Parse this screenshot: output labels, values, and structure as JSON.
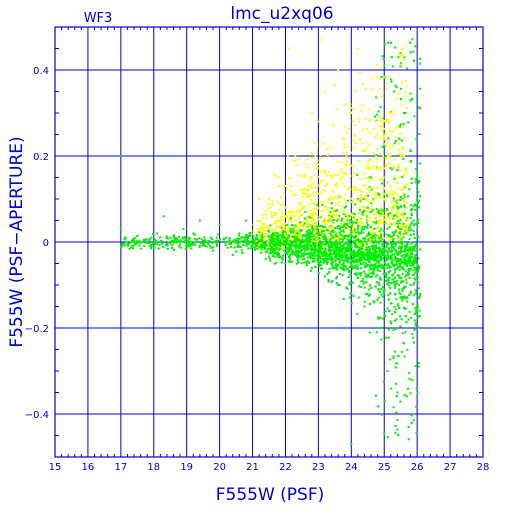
{
  "chart_data": {
    "type": "scatter",
    "title": "lmc_u2xq06",
    "subtitle": "WF3",
    "xlabel": "F555W (PSF)",
    "ylabel": "F555W (PSF−APERTURE)",
    "xlim": [
      15,
      28
    ],
    "ylim": [
      -0.5,
      0.5
    ],
    "x_ticks": [
      "15",
      "16",
      "17",
      "18",
      "19",
      "20",
      "21",
      "22",
      "23",
      "24",
      "25",
      "26",
      "27",
      "28"
    ],
    "y_ticks": [
      "−0.4",
      "−0.2",
      "0",
      "0.2",
      "0.4"
    ],
    "y_tick_values": [
      -0.4,
      -0.2,
      0,
      0.2,
      0.4
    ],
    "grid": true,
    "colors": {
      "axes": "#0000cc",
      "grid": "#0000cc",
      "series_1": "#00ee00",
      "series_2": "#ffff00"
    },
    "series": [
      {
        "color": "#00ee00",
        "x_range": [
          16.9,
          26.1
        ],
        "y_range": [
          -0.48,
          0.48
        ],
        "points": [
          [
            17.0,
            0.03
          ],
          [
            17.4,
            0.0
          ],
          [
            17.9,
            -0.01
          ],
          [
            18.1,
            0.02
          ],
          [
            18.3,
            0.06
          ],
          [
            18.5,
            0.01
          ],
          [
            18.7,
            0.0
          ],
          [
            18.9,
            0.03
          ],
          [
            19.0,
            -0.01
          ],
          [
            19.2,
            0.02
          ],
          [
            19.4,
            0.05
          ],
          [
            19.6,
            0.0
          ],
          [
            19.8,
            -0.02
          ],
          [
            20.0,
            0.04
          ],
          [
            20.2,
            0.01
          ],
          [
            20.4,
            -0.03
          ],
          [
            20.6,
            0.02
          ],
          [
            20.8,
            0.05
          ],
          [
            21.0,
            -0.01
          ],
          [
            21.2,
            0.03
          ],
          [
            21.4,
            -0.04
          ],
          [
            21.6,
            0.06
          ],
          [
            21.8,
            0.0
          ],
          [
            22.0,
            -0.05
          ],
          [
            22.2,
            0.04
          ],
          [
            22.4,
            -0.02
          ],
          [
            22.6,
            0.07
          ],
          [
            22.8,
            -0.06
          ],
          [
            23.0,
            0.02
          ],
          [
            23.2,
            -0.08
          ],
          [
            23.4,
            0.05
          ],
          [
            23.6,
            -0.1
          ],
          [
            23.8,
            0.08
          ],
          [
            24.0,
            -0.12
          ],
          [
            24.2,
            0.1
          ],
          [
            24.4,
            -0.15
          ],
          [
            24.6,
            0.15
          ],
          [
            24.8,
            -0.2
          ],
          [
            25.0,
            0.25
          ],
          [
            25.1,
            -0.3
          ],
          [
            25.3,
            0.35
          ],
          [
            25.4,
            -0.35
          ],
          [
            25.6,
            0.3
          ],
          [
            25.8,
            -0.1
          ],
          [
            26.0,
            0.1
          ],
          [
            17.0,
            0.2
          ],
          [
            18.2,
            0.2
          ],
          [
            24.0,
            -0.47
          ]
        ]
      },
      {
        "color": "#ffff00",
        "x_range": [
          21.0,
          25.9
        ],
        "y_range": [
          -0.1,
          0.48
        ],
        "points": [
          [
            21.2,
            0.05
          ],
          [
            21.5,
            0.1
          ],
          [
            21.8,
            0.15
          ],
          [
            22.0,
            0.08
          ],
          [
            22.3,
            0.2
          ],
          [
            22.5,
            0.12
          ],
          [
            22.8,
            0.3
          ],
          [
            23.0,
            0.18
          ],
          [
            23.2,
            0.35
          ],
          [
            23.4,
            0.1
          ],
          [
            23.6,
            0.4
          ],
          [
            23.8,
            0.22
          ],
          [
            24.0,
            0.3
          ],
          [
            24.2,
            0.45
          ],
          [
            24.4,
            0.16
          ],
          [
            24.6,
            0.38
          ],
          [
            24.8,
            0.25
          ],
          [
            25.0,
            0.1
          ],
          [
            25.2,
            0.3
          ],
          [
            25.5,
            0.2
          ],
          [
            22.1,
            0.45
          ],
          [
            23.1,
            0.47
          ],
          [
            21.6,
            -0.03
          ],
          [
            22.7,
            -0.05
          ]
        ]
      }
    ]
  }
}
